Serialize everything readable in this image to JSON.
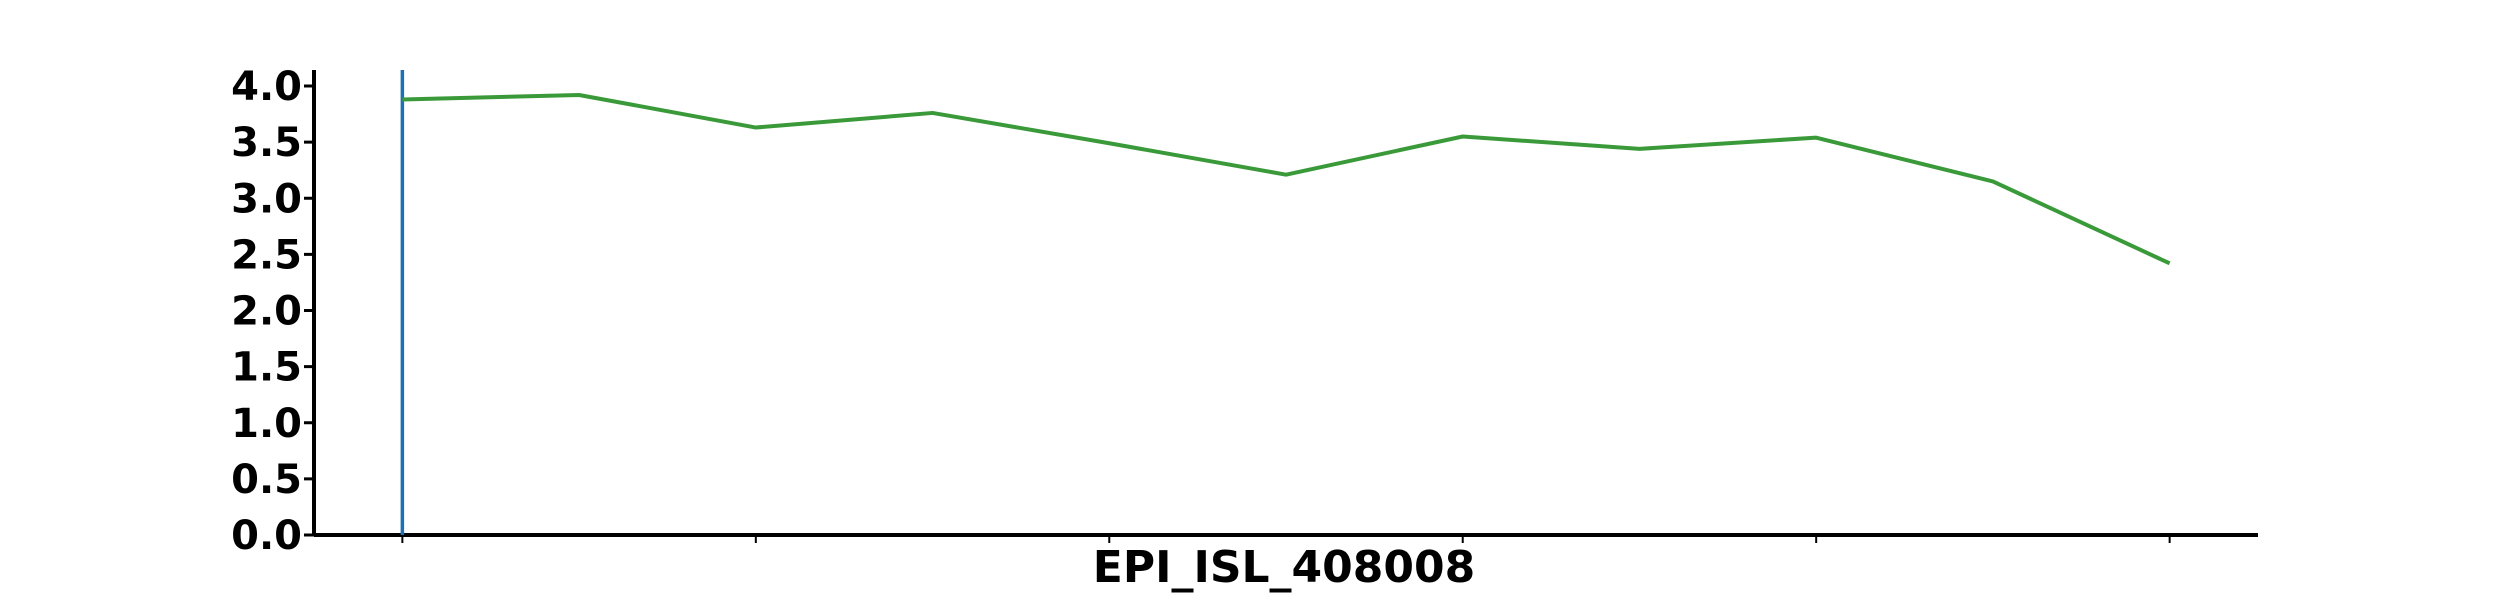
{
  "chart_data": {
    "type": "line",
    "title": "",
    "xlabel": "EPI_ISL_408008",
    "ylabel": "",
    "ylim": [
      0,
      4.0
    ],
    "xlim": [
      -0.5,
      10.5
    ],
    "y_ticks": [
      "0.0",
      "0.5",
      "1.0",
      "1.5",
      "2.0",
      "2.5",
      "3.0",
      "3.5",
      "4.0"
    ],
    "x_ticks": [
      0,
      2,
      4,
      6,
      8,
      10
    ],
    "x": [
      0,
      1,
      2,
      3,
      4,
      5,
      6,
      7,
      8,
      9,
      10
    ],
    "series": [
      {
        "values": [
          3.88,
          3.92,
          3.63,
          3.76,
          3.49,
          3.21,
          3.55,
          3.44,
          3.54,
          3.15,
          2.42
        ],
        "color": "#3a9a3a"
      }
    ],
    "vline": {
      "x": 0,
      "color": "#1f6fb4"
    },
    "grid": false,
    "legend": "none"
  }
}
